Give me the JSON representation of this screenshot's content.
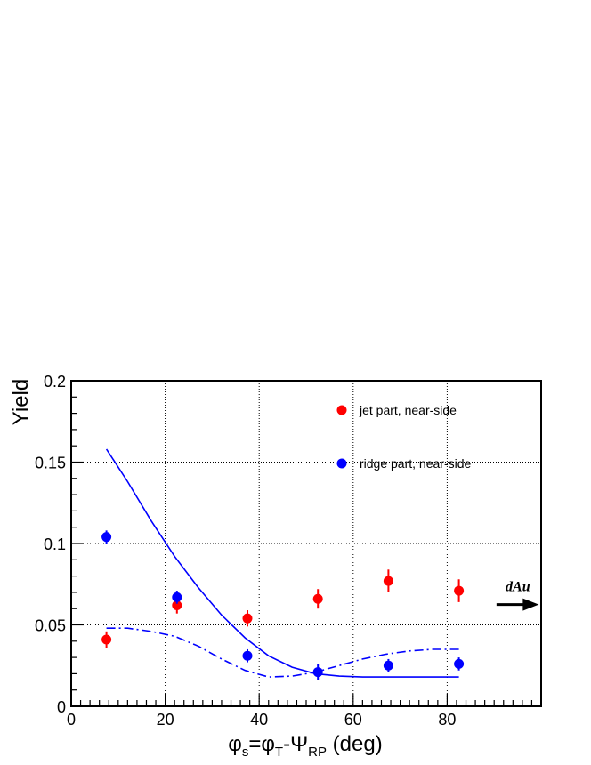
{
  "chart_data": {
    "type": "scatter",
    "title": "",
    "ylabel": "Yield",
    "xlabel_parts": {
      "phi1": "φ",
      "s": "s",
      "eq": "=",
      "phi2": "φ",
      "t": "T",
      "minus": "-",
      "psi": "Ψ",
      "rp": "RP",
      "deg": " (deg)"
    },
    "xlim": [
      0,
      100
    ],
    "ylim": [
      0,
      0.2
    ],
    "x_ticks": [
      0,
      20,
      40,
      60,
      80
    ],
    "x_tick_labels": [
      "0",
      "20",
      "40",
      "60",
      "80"
    ],
    "y_ticks": [
      0,
      0.05,
      0.1,
      0.15,
      0.2
    ],
    "y_tick_labels": [
      "0",
      "0.05",
      "0.1",
      "0.15",
      "0.2"
    ],
    "grid": true,
    "legend_position": "top-right",
    "series": [
      {
        "name": "jet part, near-side",
        "color": "#ff0000",
        "points": [
          {
            "x": 7.5,
            "y": 0.041,
            "err": 0.005
          },
          {
            "x": 22.5,
            "y": 0.062,
            "err": 0.005
          },
          {
            "x": 37.5,
            "y": 0.054,
            "err": 0.005
          },
          {
            "x": 52.5,
            "y": 0.066,
            "err": 0.006
          },
          {
            "x": 67.5,
            "y": 0.077,
            "err": 0.007
          },
          {
            "x": 82.5,
            "y": 0.071,
            "err": 0.007
          }
        ]
      },
      {
        "name": "ridge part, near-side",
        "color": "#0000ff",
        "points": [
          {
            "x": 7.5,
            "y": 0.104,
            "err": 0.004
          },
          {
            "x": 22.5,
            "y": 0.067,
            "err": 0.004
          },
          {
            "x": 37.5,
            "y": 0.031,
            "err": 0.004
          },
          {
            "x": 52.5,
            "y": 0.021,
            "err": 0.005
          },
          {
            "x": 67.5,
            "y": 0.025,
            "err": 0.004
          },
          {
            "x": 82.5,
            "y": 0.026,
            "err": 0.004
          }
        ]
      }
    ],
    "curves": [
      {
        "style": "solid",
        "color": "#0000ff",
        "points": [
          [
            7.5,
            0.158
          ],
          [
            12,
            0.138
          ],
          [
            17,
            0.114
          ],
          [
            22,
            0.092
          ],
          [
            27,
            0.073
          ],
          [
            32,
            0.056
          ],
          [
            37,
            0.042
          ],
          [
            42,
            0.031
          ],
          [
            47,
            0.024
          ],
          [
            52,
            0.02
          ],
          [
            57,
            0.0185
          ],
          [
            62,
            0.018
          ],
          [
            70,
            0.018
          ],
          [
            82.5,
            0.018
          ]
        ]
      },
      {
        "style": "dash-dot",
        "color": "#0000ff",
        "points": [
          [
            7.5,
            0.048
          ],
          [
            12,
            0.048
          ],
          [
            17,
            0.046
          ],
          [
            22,
            0.043
          ],
          [
            27,
            0.037
          ],
          [
            32,
            0.029
          ],
          [
            37,
            0.022
          ],
          [
            42,
            0.018
          ],
          [
            47,
            0.0185
          ],
          [
            52,
            0.021
          ],
          [
            57,
            0.025
          ],
          [
            62,
            0.029
          ],
          [
            67,
            0.032
          ],
          [
            72,
            0.034
          ],
          [
            77,
            0.035
          ],
          [
            82.5,
            0.035
          ]
        ]
      }
    ],
    "annotation": {
      "text": "dAu",
      "y": 0.062,
      "arrow_from_x": 90.5,
      "arrow_to_x": 99.5,
      "arrow_y": 0.0625
    }
  }
}
